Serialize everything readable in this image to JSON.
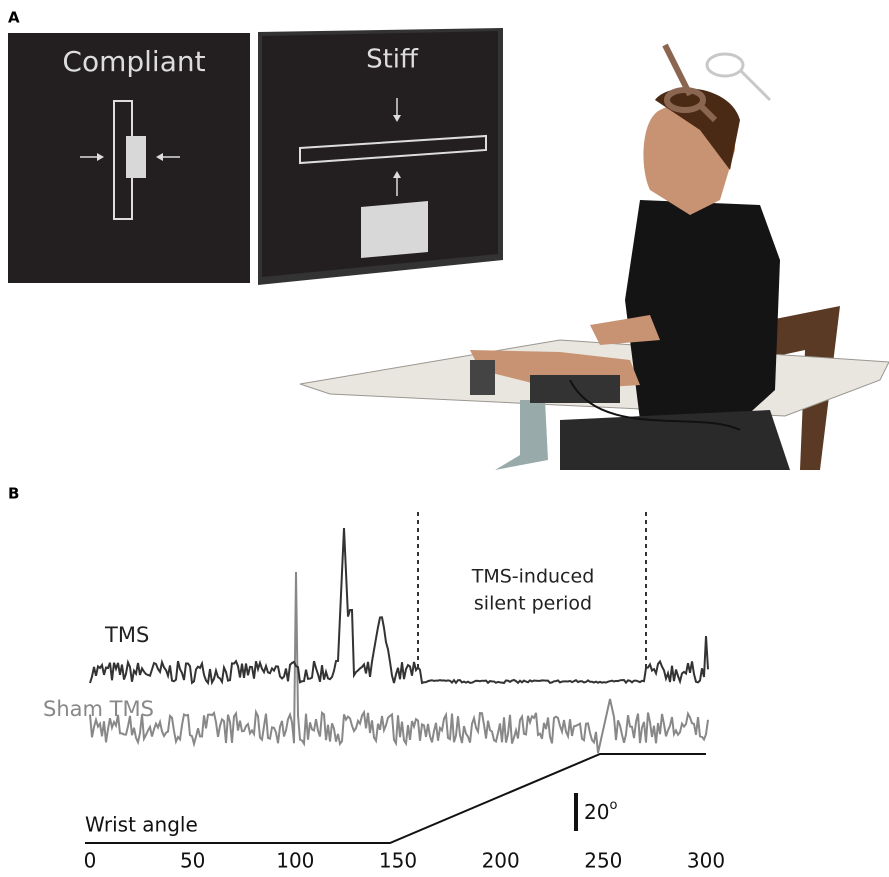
{
  "panel_a": {
    "label": "A",
    "screens": [
      {
        "title": "Compliant"
      },
      {
        "title": "Stiff"
      }
    ]
  },
  "panel_b": {
    "label": "B",
    "annotation": [
      "TMS-induced",
      "silent period"
    ],
    "traces": [
      {
        "name": "TMS"
      },
      {
        "name": "Sham TMS"
      }
    ],
    "wrist_angle_label": "Wrist angle",
    "scale_bar": {
      "value": "20",
      "sup": "o"
    },
    "x_axis": {
      "xlim": [
        0,
        300
      ],
      "xticks": [
        0,
        50,
        100,
        150,
        200,
        250,
        300
      ]
    }
  }
}
